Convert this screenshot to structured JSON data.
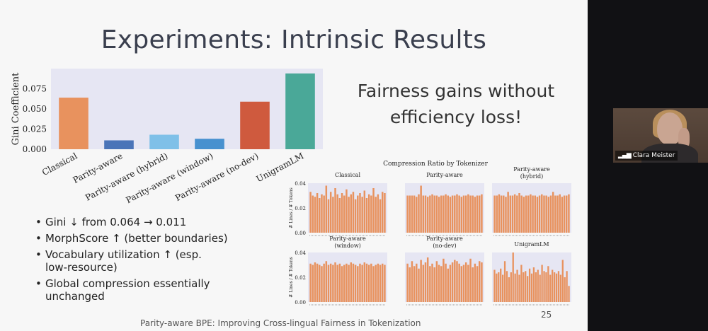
{
  "slide": {
    "title": "Experiments: Intrinsic Results",
    "tagline_line1": "Fairness gains without",
    "tagline_line2": "efficiency loss!",
    "bullets": [
      "Gini ↓ from 0.064 → 0.011",
      "MorphScore ↑ (better boundaries)",
      "Vocabulary utilization ↑ (esp. low-resource)",
      "Global compression essentially unchanged"
    ],
    "bullet_lines": [
      [
        "Gini ↓ from 0.064 → 0.011"
      ],
      [
        "MorphScore ↑ (better boundaries)"
      ],
      [
        "Vocabulary utilization ↑ (esp.",
        "low-resource)"
      ],
      [
        "Global compression essentially",
        "unchanged"
      ]
    ],
    "footer": "Parity-aware BPE: Improving Cross-lingual Fairness in Tokenization",
    "page_number": "25"
  },
  "video": {
    "participant_name": "Clara Meister",
    "signal_icon": "signal-bars-icon"
  },
  "chart_data": [
    {
      "type": "bar",
      "title": "",
      "xlabel": "",
      "ylabel": "Gini Coefficient",
      "categories": [
        "Classical",
        "Parity-aware",
        "Parity-aware (hybrid)",
        "Parity-aware (window)",
        "Parity-aware (no-dev)",
        "UnigramLM"
      ],
      "values": [
        0.064,
        0.011,
        0.018,
        0.013,
        0.059,
        0.094
      ],
      "colors": [
        "#e8925e",
        "#4a74b8",
        "#7fc0e8",
        "#4891cf",
        "#cf5a3e",
        "#4aa898"
      ],
      "yticks": [
        0.0,
        0.025,
        0.05,
        0.075
      ],
      "ytick_labels": [
        "0.000",
        "0.025",
        "0.050",
        "0.075"
      ],
      "ylim": [
        0,
        0.1
      ],
      "grid": false,
      "background": "#e6e6f3"
    },
    {
      "type": "bar",
      "title": "Compression Ratio by Tokenizer",
      "ylabel": "# Lines / # Tokens",
      "ylim": [
        0,
        0.04
      ],
      "yticks": [
        0.0,
        0.02,
        0.04
      ],
      "ytick_labels": [
        "0.00",
        "0.02",
        "0.04"
      ],
      "bar_color": "#e8925e",
      "background": "#e6e6f3",
      "panels": [
        {
          "title_lines": [
            "Classical"
          ],
          "values": [
            0.033,
            0.03,
            0.029,
            0.032,
            0.028,
            0.031,
            0.03,
            0.038,
            0.027,
            0.033,
            0.029,
            0.036,
            0.031,
            0.028,
            0.032,
            0.03,
            0.035,
            0.029,
            0.031,
            0.033,
            0.027,
            0.03,
            0.032,
            0.029,
            0.034,
            0.028,
            0.031,
            0.03,
            0.036,
            0.029,
            0.031,
            0.027,
            0.033,
            0.032
          ]
        },
        {
          "title_lines": [
            "Parity-aware"
          ],
          "values": [
            0.03,
            0.03,
            0.03,
            0.03,
            0.029,
            0.031,
            0.038,
            0.03,
            0.03,
            0.029,
            0.03,
            0.031,
            0.03,
            0.03,
            0.029,
            0.03,
            0.03,
            0.031,
            0.03,
            0.029,
            0.03,
            0.03,
            0.031,
            0.03,
            0.029,
            0.03,
            0.03,
            0.031,
            0.03,
            0.03,
            0.029,
            0.03,
            0.03,
            0.031
          ]
        },
        {
          "title_lines": [
            "Parity-aware",
            "(hybrid)"
          ],
          "values": [
            0.03,
            0.03,
            0.031,
            0.03,
            0.03,
            0.029,
            0.033,
            0.03,
            0.03,
            0.031,
            0.03,
            0.032,
            0.03,
            0.029,
            0.03,
            0.03,
            0.031,
            0.03,
            0.03,
            0.029,
            0.03,
            0.031,
            0.03,
            0.03,
            0.029,
            0.03,
            0.033,
            0.03,
            0.03,
            0.031,
            0.029,
            0.03,
            0.03,
            0.031
          ]
        },
        {
          "title_lines": [
            "Parity-aware",
            "(window)"
          ],
          "values": [
            0.031,
            0.03,
            0.032,
            0.031,
            0.03,
            0.029,
            0.031,
            0.033,
            0.03,
            0.031,
            0.03,
            0.032,
            0.03,
            0.031,
            0.029,
            0.03,
            0.031,
            0.03,
            0.032,
            0.031,
            0.03,
            0.029,
            0.031,
            0.03,
            0.032,
            0.031,
            0.03,
            0.031,
            0.029,
            0.03,
            0.031,
            0.03,
            0.031,
            0.03
          ]
        },
        {
          "title_lines": [
            "Parity-aware",
            "(no-dev)"
          ],
          "values": [
            0.031,
            0.028,
            0.033,
            0.029,
            0.031,
            0.027,
            0.034,
            0.03,
            0.032,
            0.036,
            0.029,
            0.031,
            0.028,
            0.033,
            0.03,
            0.029,
            0.035,
            0.031,
            0.027,
            0.03,
            0.032,
            0.034,
            0.033,
            0.031,
            0.029,
            0.03,
            0.032,
            0.03,
            0.035,
            0.028,
            0.031,
            0.029,
            0.033,
            0.032
          ]
        },
        {
          "title_lines": [
            "UnigramLM"
          ],
          "values": [
            0.026,
            0.023,
            0.024,
            0.027,
            0.022,
            0.033,
            0.025,
            0.02,
            0.024,
            0.04,
            0.023,
            0.026,
            0.022,
            0.03,
            0.024,
            0.025,
            0.021,
            0.027,
            0.023,
            0.028,
            0.024,
            0.026,
            0.022,
            0.03,
            0.025,
            0.024,
            0.029,
            0.022,
            0.026,
            0.024,
            0.023,
            0.025,
            0.022,
            0.034,
            0.02,
            0.025,
            0.013
          ]
        }
      ]
    }
  ]
}
